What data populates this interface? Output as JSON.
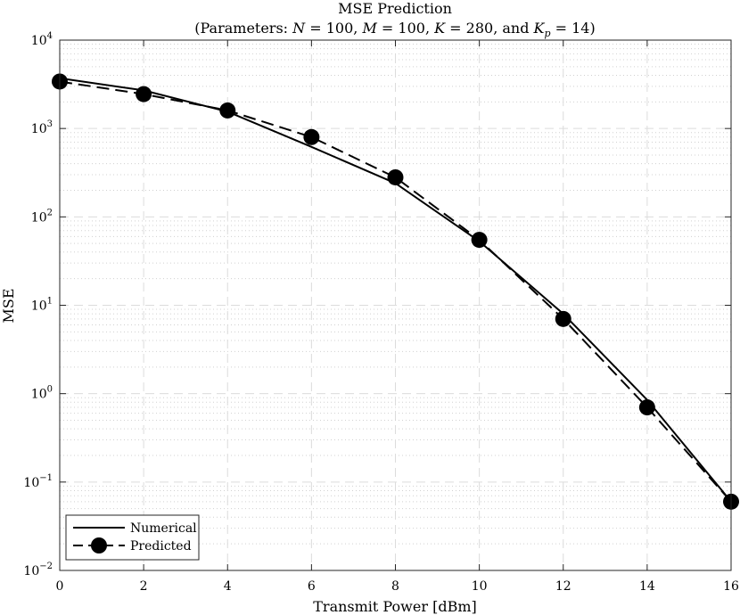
{
  "chart_data": {
    "type": "line",
    "title": "MSE Prediction",
    "subtitle": "(Parameters: N = 100, M = 100, K = 280, and K_p = 14)",
    "xlabel": "Transmit Power [dBm]",
    "ylabel": "MSE",
    "xlim": [
      0,
      16
    ],
    "ylim": [
      0.01,
      10000
    ],
    "yscale": "log",
    "xticks": [
      0,
      2,
      4,
      6,
      8,
      10,
      12,
      14,
      16
    ],
    "yticks": [
      0.01,
      0.1,
      1,
      10,
      100,
      1000,
      10000
    ],
    "ytick_labels": [
      {
        "base": "10",
        "exp": "−2"
      },
      {
        "base": "10",
        "exp": "−1"
      },
      {
        "base": "10",
        "exp": "0"
      },
      {
        "base": "10",
        "exp": "1"
      },
      {
        "base": "10",
        "exp": "2"
      },
      {
        "base": "10",
        "exp": "3"
      },
      {
        "base": "10",
        "exp": "4"
      }
    ],
    "grid": true,
    "minor_grid": true,
    "legend_position": "bottom-left",
    "series": [
      {
        "name": "Numerical",
        "style": "solid",
        "marker": "none",
        "color": "#000000",
        "x": [
          0,
          2,
          4,
          6,
          8,
          10,
          12,
          14,
          16
        ],
        "values": [
          3700,
          2700,
          1550,
          620,
          240,
          53,
          8,
          0.85,
          0.06
        ]
      },
      {
        "name": "Predicted",
        "style": "dashed",
        "marker": "circle",
        "color": "#000000",
        "x": [
          0,
          2,
          4,
          6,
          8,
          10,
          12,
          14,
          16
        ],
        "values": [
          3400,
          2450,
          1600,
          800,
          280,
          55,
          7,
          0.7,
          0.06
        ]
      }
    ]
  }
}
